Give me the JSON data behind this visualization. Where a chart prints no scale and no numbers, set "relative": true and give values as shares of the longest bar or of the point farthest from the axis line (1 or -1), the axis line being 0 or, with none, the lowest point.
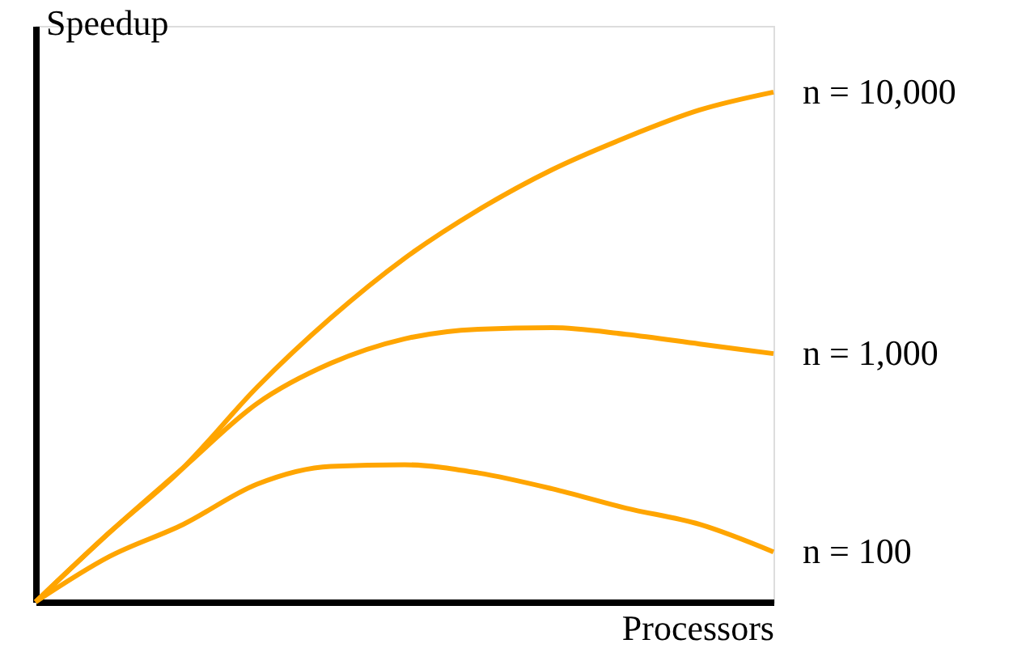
{
  "chart_data": {
    "type": "line",
    "relative": true,
    "xlabel": "Processors",
    "ylabel": "Speedup",
    "tick_labels": false,
    "line_style": "solid",
    "categories": [
      null,
      null,
      null,
      null,
      null,
      null,
      null,
      null,
      null,
      null,
      null
    ],
    "series": [
      {
        "name": "n = 10,000",
        "color": "#ffa500",
        "values": [
          0,
          0.136,
          0.263,
          0.421,
          0.557,
          0.674,
          0.769,
          0.848,
          0.911,
          0.965,
          1
        ]
      },
      {
        "name": "n = 1,000",
        "color": "#ffa500",
        "values": [
          0,
          0.136,
          0.263,
          0.389,
          0.468,
          0.516,
          0.535,
          0.538,
          0.525,
          0.506,
          0.487
        ]
      },
      {
        "name": "n = 100",
        "color": "#ffa500",
        "values": [
          0,
          0.089,
          0.152,
          0.231,
          0.266,
          0.269,
          0.253,
          0.222,
          0.184,
          0.152,
          0.098
        ]
      }
    ]
  }
}
